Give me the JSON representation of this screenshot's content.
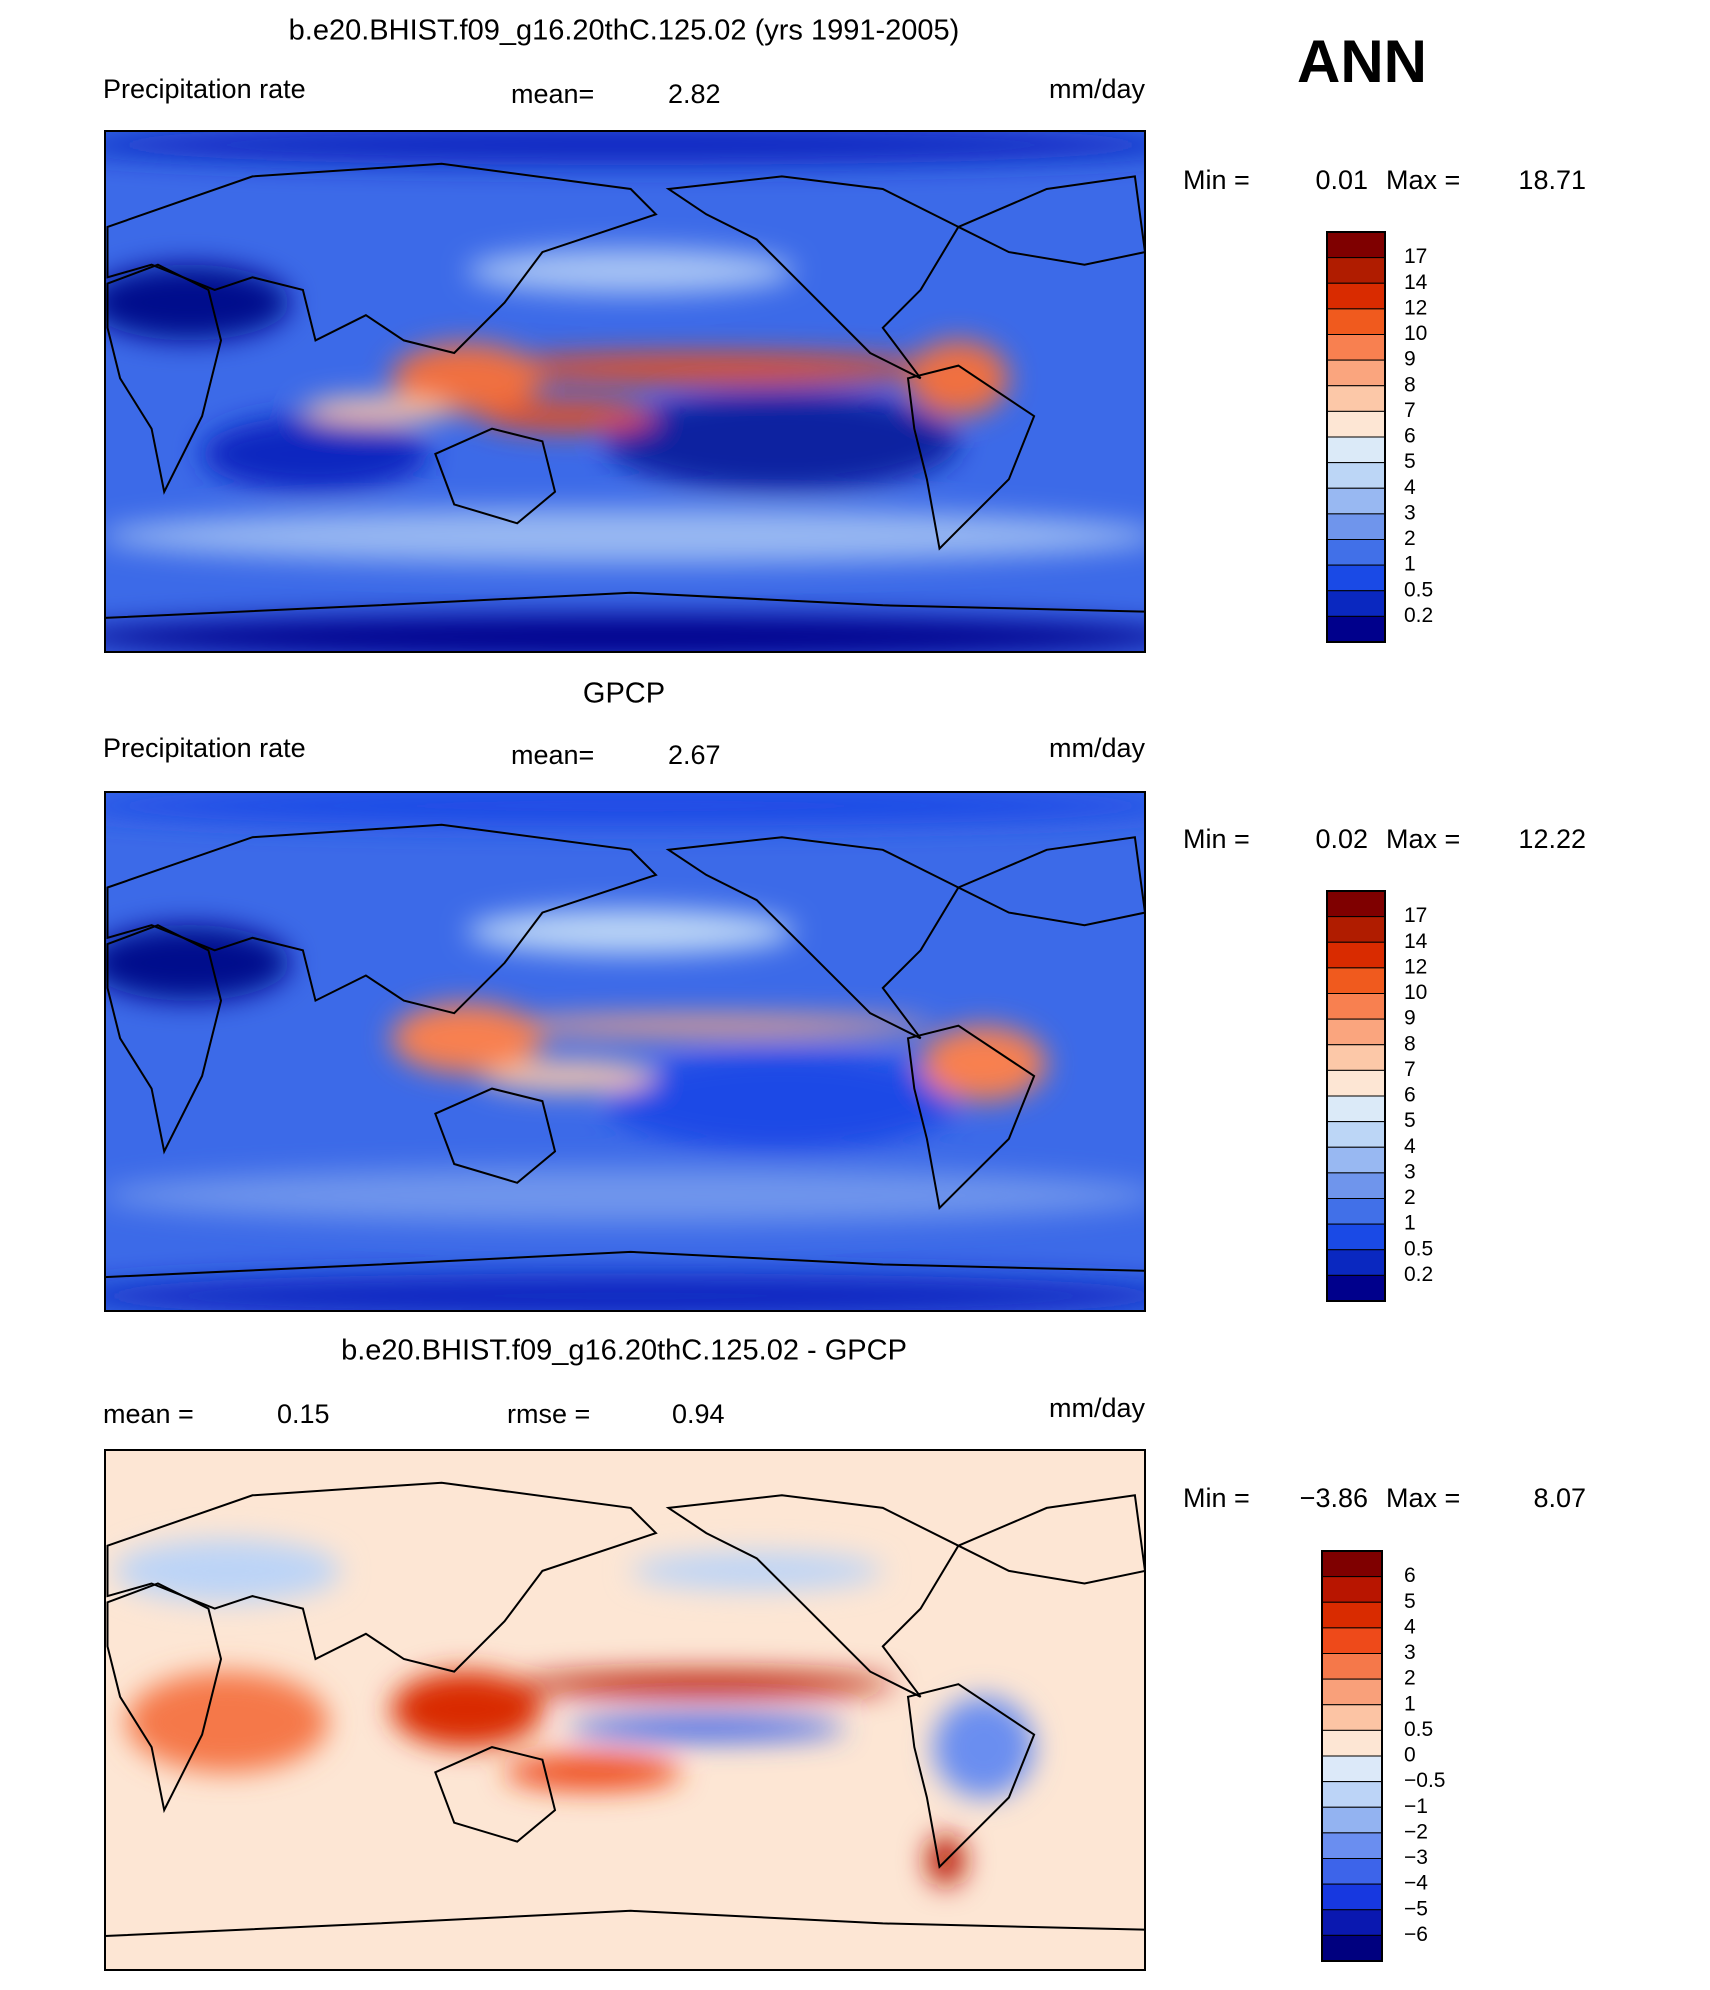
{
  "header": {
    "season": "ANN"
  },
  "panels": [
    {
      "title": "b.e20.BHIST.f09_g16.20thC.125.02 (yrs 1991-2005)",
      "left_label": "Precipitation rate",
      "stats": [
        {
          "label": "mean=",
          "value": "2.82"
        }
      ],
      "units": "mm/day",
      "min_label": "Min =",
      "min": "0.01",
      "max_label": "Max =",
      "max": "18.71",
      "colorbar": {
        "labels": [
          "17",
          "14",
          "12",
          "10",
          "9",
          "8",
          "7",
          "6",
          "5",
          "4",
          "3",
          "2",
          "1",
          "0.5",
          "0.2"
        ],
        "colors": [
          "#7f0000",
          "#b01c00",
          "#d92b00",
          "#f05a1e",
          "#f88050",
          "#faa57e",
          "#fcc8a8",
          "#fde6d4",
          "#dbeaf8",
          "#bcd6f6",
          "#98b8f2",
          "#6f95ec",
          "#4170e8",
          "#1a4ae6",
          "#0a28c0",
          "#00008c"
        ]
      }
    },
    {
      "title": "GPCP",
      "left_label": "Precipitation rate",
      "stats": [
        {
          "label": "mean=",
          "value": "2.67"
        }
      ],
      "units": "mm/day",
      "min_label": "Min =",
      "min": "0.02",
      "max_label": "Max =",
      "max": "12.22",
      "colorbar": {
        "labels": [
          "17",
          "14",
          "12",
          "10",
          "9",
          "8",
          "7",
          "6",
          "5",
          "4",
          "3",
          "2",
          "1",
          "0.5",
          "0.2"
        ],
        "colors": [
          "#7f0000",
          "#b01c00",
          "#d92b00",
          "#f05a1e",
          "#f88050",
          "#faa57e",
          "#fcc8a8",
          "#fde6d4",
          "#dbeaf8",
          "#bcd6f6",
          "#98b8f2",
          "#6f95ec",
          "#4170e8",
          "#1a4ae6",
          "#0a28c0",
          "#00008c"
        ]
      }
    },
    {
      "title": "b.e20.BHIST.f09_g16.20thC.125.02 - GPCP",
      "stats": [
        {
          "label": "mean =",
          "value": "0.15"
        },
        {
          "label": "rmse =",
          "value": "0.94"
        }
      ],
      "units": "mm/day",
      "min_label": "Min =",
      "min": "−3.86",
      "max_label": "Max =",
      "max": "8.07",
      "colorbar": {
        "labels": [
          "6",
          "5",
          "4",
          "3",
          "2",
          "1",
          "0.5",
          "0",
          "−0.5",
          "−1",
          "−2",
          "−3",
          "−4",
          "−5",
          "−6"
        ],
        "colors": [
          "#7f0000",
          "#b81500",
          "#d92b00",
          "#ee4a1a",
          "#f5784a",
          "#f9a07a",
          "#fcc4a4",
          "#fde6d4",
          "#dce9f9",
          "#bcd4f7",
          "#93b3f1",
          "#6a8ef0",
          "#3d64ea",
          "#1738e0",
          "#0a18b0",
          "#00007f"
        ]
      }
    }
  ]
}
